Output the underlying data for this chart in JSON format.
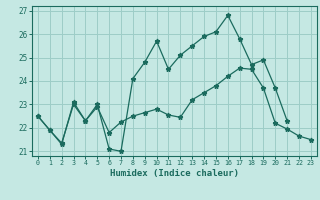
{
  "xlabel": "Humidex (Indice chaleur)",
  "xlim": [
    -0.5,
    23.5
  ],
  "ylim": [
    20.8,
    27.2
  ],
  "yticks": [
    21,
    22,
    23,
    24,
    25,
    26,
    27
  ],
  "xticks": [
    0,
    1,
    2,
    3,
    4,
    5,
    6,
    7,
    8,
    9,
    10,
    11,
    12,
    13,
    14,
    15,
    16,
    17,
    18,
    19,
    20,
    21,
    22,
    23
  ],
  "bg_color": "#c5e8e3",
  "grid_color": "#9dcdc7",
  "line_color": "#1b6b5e",
  "line1_x": [
    0,
    1,
    2,
    3,
    4,
    5,
    6,
    7,
    8,
    9,
    10,
    11,
    12,
    13,
    14,
    15,
    16,
    17,
    18,
    19,
    20,
    21
  ],
  "line1_y": [
    22.5,
    21.9,
    21.3,
    23.1,
    22.3,
    23.0,
    21.1,
    21.0,
    24.1,
    24.8,
    25.7,
    24.5,
    25.1,
    25.5,
    25.9,
    26.1,
    26.8,
    25.8,
    24.7,
    24.9,
    23.7,
    22.3
  ],
  "line2_x": [
    0,
    1,
    2,
    3,
    4,
    5,
    6,
    7,
    8,
    9,
    10,
    11,
    12,
    13,
    14,
    15,
    16,
    17,
    18,
    19,
    20,
    21,
    22,
    23
  ],
  "line2_y": [
    22.5,
    21.9,
    21.35,
    23.0,
    22.3,
    22.9,
    21.8,
    22.25,
    22.5,
    22.65,
    22.8,
    22.55,
    22.45,
    23.2,
    23.5,
    23.8,
    24.2,
    24.55,
    24.5,
    23.7,
    22.2,
    21.95,
    21.65,
    21.5
  ]
}
